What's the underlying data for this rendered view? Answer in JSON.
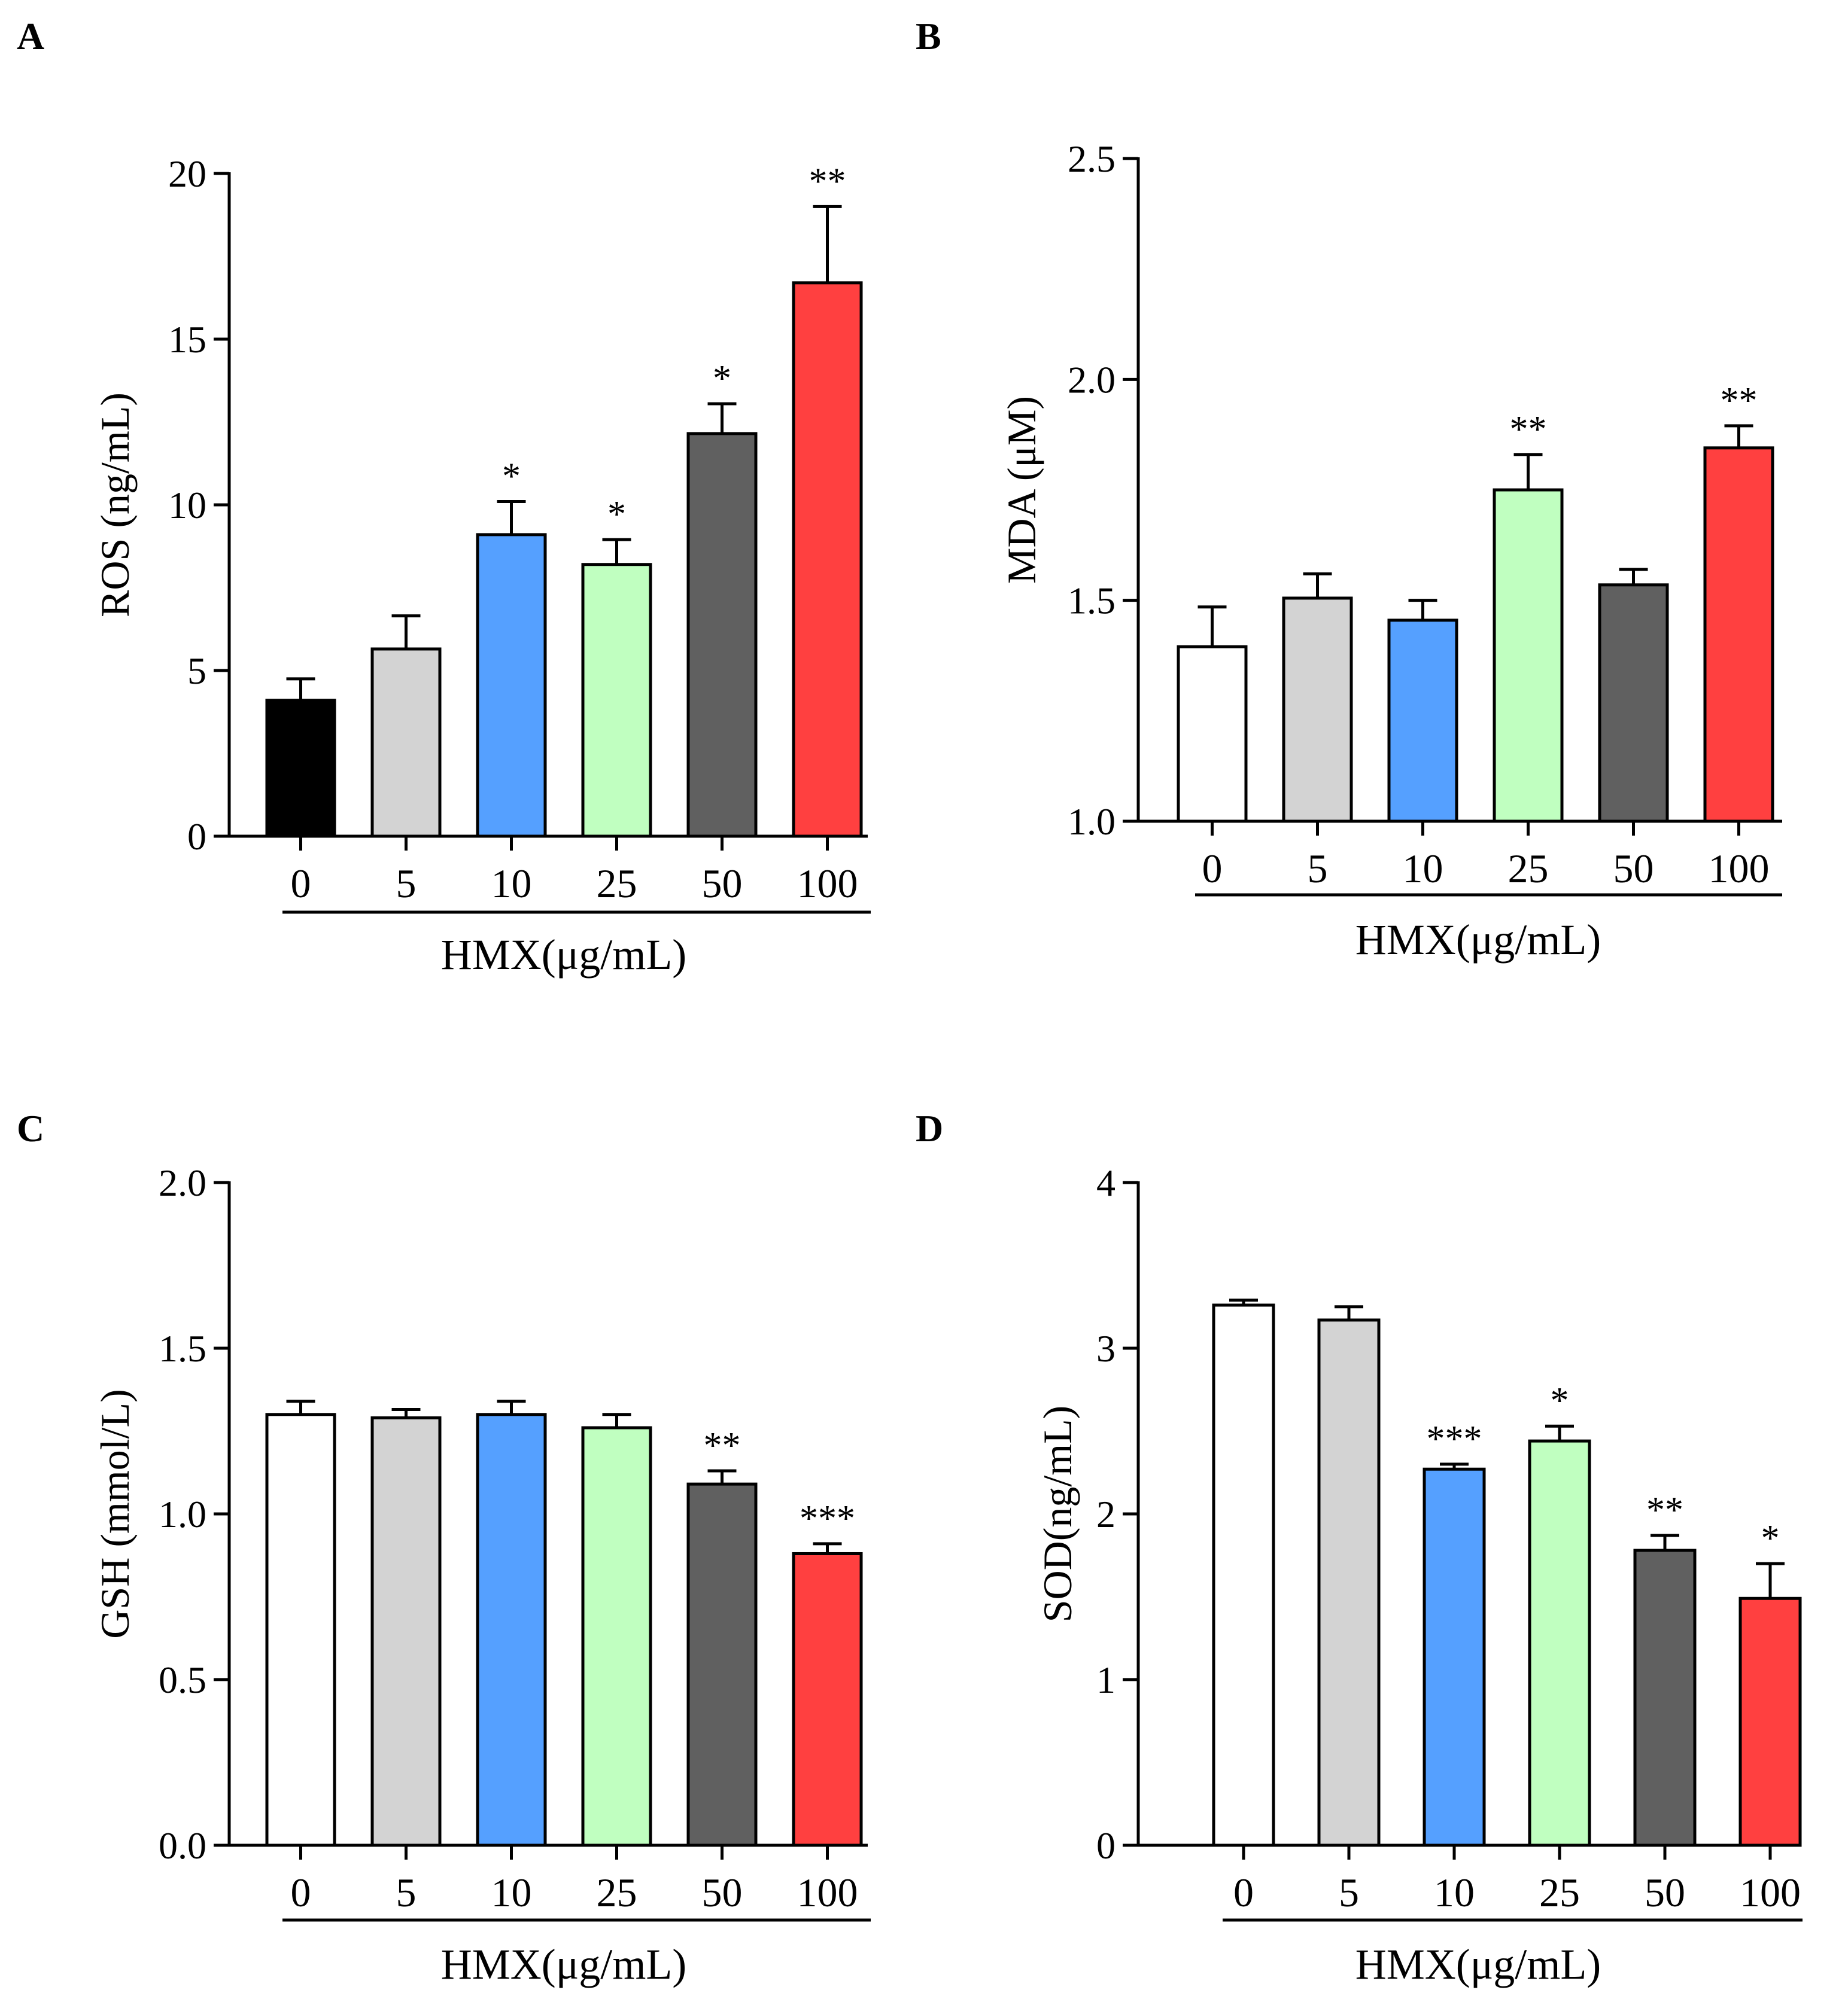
{
  "chart_data": [
    {
      "panel": "A",
      "type": "bar",
      "categories": [
        "0",
        "5",
        "10",
        "25",
        "50",
        "100"
      ],
      "values": [
        4.1,
        5.65,
        9.1,
        8.2,
        12.15,
        16.7
      ],
      "errors": [
        0.65,
        1.0,
        1.0,
        0.75,
        0.9,
        2.3
      ],
      "significance": [
        "",
        "",
        "*",
        "*",
        "*",
        "**"
      ],
      "colors": [
        "#000000",
        "#d3d3d3",
        "#55a0ff",
        "#c0ffc0",
        "#606060",
        "#ff4040"
      ],
      "ylabel": "ROS (ng/mL)",
      "xlabel": "HMX(μg/mL)",
      "ylim": [
        0,
        20
      ],
      "yticks": [
        0,
        5,
        10,
        15,
        20
      ],
      "ytick_labels": [
        "0",
        "5",
        "10",
        "15",
        "20"
      ]
    },
    {
      "panel": "B",
      "type": "bar",
      "categories": [
        "0",
        "5",
        "10",
        "25",
        "50",
        "100"
      ],
      "values": [
        1.395,
        1.505,
        1.455,
        1.75,
        1.535,
        1.845
      ],
      "errors": [
        0.09,
        0.055,
        0.045,
        0.08,
        0.035,
        0.05
      ],
      "significance": [
        "",
        "",
        "",
        "**",
        "",
        "**"
      ],
      "colors": [
        "#ffffff",
        "#d3d3d3",
        "#55a0ff",
        "#c0ffc0",
        "#606060",
        "#ff4040"
      ],
      "ylabel": "MDA (μM)",
      "xlabel": "HMX(μg/mL)",
      "ylim": [
        1.0,
        2.5
      ],
      "yticks": [
        1.0,
        1.5,
        2.0,
        2.5
      ],
      "ytick_labels": [
        "1.0",
        "1.5",
        "2.0",
        "2.5"
      ]
    },
    {
      "panel": "C",
      "type": "bar",
      "categories": [
        "0",
        "5",
        "10",
        "25",
        "50",
        "100"
      ],
      "values": [
        1.3,
        1.29,
        1.3,
        1.26,
        1.09,
        0.88
      ],
      "errors": [
        0.04,
        0.025,
        0.04,
        0.04,
        0.04,
        0.03
      ],
      "significance": [
        "",
        "",
        "",
        "",
        "**",
        "***"
      ],
      "colors": [
        "#ffffff",
        "#d3d3d3",
        "#55a0ff",
        "#c0ffc0",
        "#606060",
        "#ff4040"
      ],
      "ylabel": "GSH (mmol/L)",
      "xlabel": "HMX(μg/mL)",
      "ylim": [
        0.0,
        2.0
      ],
      "yticks": [
        0.0,
        0.5,
        1.0,
        1.5,
        2.0
      ],
      "ytick_labels": [
        "0.0",
        "0.5",
        "1.0",
        "1.5",
        "2.0"
      ]
    },
    {
      "panel": "D",
      "type": "bar",
      "categories": [
        "0",
        "5",
        "10",
        "25",
        "50",
        "100"
      ],
      "values": [
        3.26,
        3.17,
        2.27,
        2.44,
        1.78,
        1.49
      ],
      "errors": [
        0.03,
        0.08,
        0.03,
        0.09,
        0.09,
        0.21
      ],
      "significance": [
        "",
        "",
        "***",
        "*",
        "**",
        "*"
      ],
      "colors": [
        "#ffffff",
        "#d3d3d3",
        "#55a0ff",
        "#c0ffc0",
        "#606060",
        "#ff4040"
      ],
      "ylabel": "SOD(ng/mL)",
      "xlabel": "HMX(μg/mL)",
      "ylim": [
        0,
        4
      ],
      "yticks": [
        0,
        1,
        2,
        3,
        4
      ],
      "ytick_labels": [
        "0",
        "1",
        "2",
        "3",
        "4"
      ]
    }
  ]
}
